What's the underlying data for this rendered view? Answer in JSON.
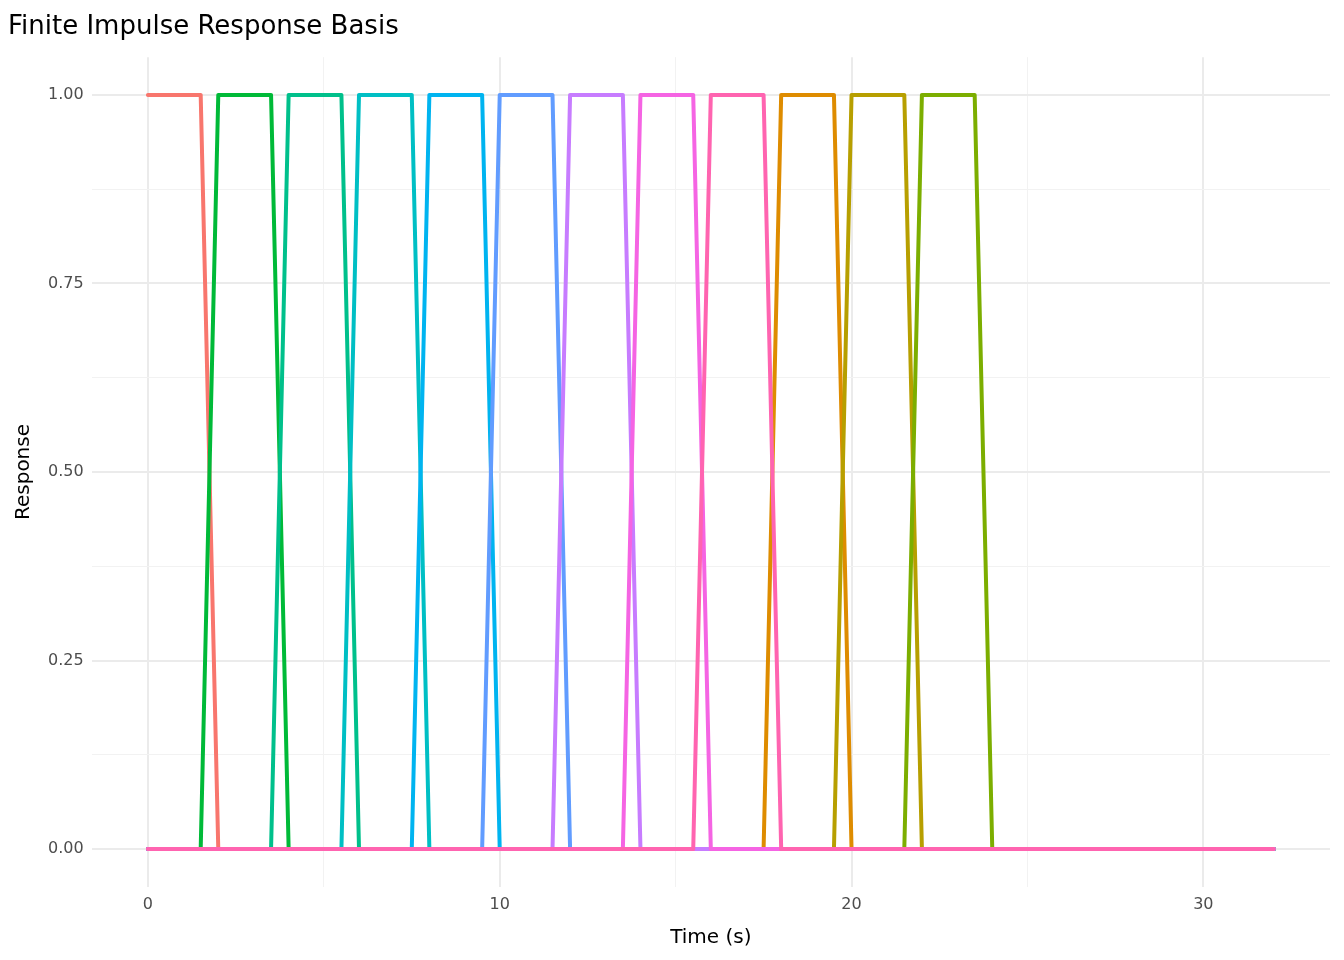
{
  "chart_data": {
    "type": "line",
    "title": "Finite Impulse Response Basis",
    "xlabel": "Time (s)",
    "ylabel": "Response",
    "xlim": [
      -1.6,
      33.6
    ],
    "ylim": [
      -0.05,
      1.05
    ],
    "xticks": [
      0,
      {
        "value": 5,
        "label": null
      },
      10,
      {
        "value": 15,
        "label": null
      },
      20,
      {
        "value": 25,
        "label": null
      },
      30
    ],
    "yticks": [
      "0.00",
      {
        "value": 0.125,
        "label": null
      },
      {
        "value": 0.25,
        "label": "0.25"
      },
      {
        "value": 0.375,
        "label": null
      },
      {
        "value": 0.5,
        "label": "0.50"
      },
      {
        "value": 0.625,
        "label": null
      },
      {
        "value": 0.75,
        "label": "0.75"
      },
      {
        "value": 0.875,
        "label": null
      },
      {
        "value": 1,
        "label": "1.00"
      }
    ],
    "grid": true,
    "legend": false,
    "marker": "none",
    "line_style": "solid",
    "series": [
      {
        "color": "#f8766d",
        "x": [
          0,
          1.5,
          2
        ],
        "values": [
          1,
          1,
          0
        ]
      },
      {
        "color": "#de8c00",
        "x": [
          0,
          17.5,
          18,
          19.5,
          20,
          32
        ],
        "values": [
          0,
          0,
          1,
          1,
          0,
          0
        ]
      },
      {
        "color": "#b79f00",
        "x": [
          0,
          19.5,
          20,
          21.5,
          22,
          32
        ],
        "values": [
          0,
          0,
          1,
          1,
          0,
          0
        ]
      },
      {
        "color": "#7cae00",
        "x": [
          0,
          21.5,
          22,
          23.5,
          24,
          32
        ],
        "values": [
          0,
          0,
          1,
          1,
          0,
          0
        ]
      },
      {
        "color": "#00ba38",
        "x": [
          0,
          1.5,
          2,
          3.5,
          4,
          32
        ],
        "values": [
          0,
          0,
          1,
          1,
          0,
          0
        ]
      },
      {
        "color": "#00c08b",
        "x": [
          0,
          3.5,
          4,
          5.5,
          6,
          32
        ],
        "values": [
          0,
          0,
          1,
          1,
          0,
          0
        ]
      },
      {
        "color": "#00bfc4",
        "x": [
          0,
          5.5,
          6,
          7.5,
          8,
          32
        ],
        "values": [
          0,
          0,
          1,
          1,
          0,
          0
        ]
      },
      {
        "color": "#00b4f0",
        "x": [
          0,
          7.5,
          8,
          9.5,
          10,
          32
        ],
        "values": [
          0,
          0,
          1,
          1,
          0,
          0
        ]
      },
      {
        "color": "#619cff",
        "x": [
          0,
          9.5,
          10,
          11.5,
          12,
          32
        ],
        "values": [
          0,
          0,
          1,
          1,
          0,
          0
        ]
      },
      {
        "color": "#c77cff",
        "x": [
          0,
          11.5,
          12,
          13.5,
          14,
          32
        ],
        "values": [
          0,
          0,
          1,
          1,
          0,
          0
        ]
      },
      {
        "color": "#f564e3",
        "x": [
          0,
          13.5,
          14,
          15.5,
          16,
          32
        ],
        "values": [
          0,
          0,
          1,
          1,
          0,
          0
        ]
      },
      {
        "color": "#ff64b0",
        "x": [
          0,
          15.5,
          16,
          17.5,
          18,
          32
        ],
        "values": [
          0,
          0,
          1,
          1,
          0,
          0
        ]
      }
    ]
  }
}
